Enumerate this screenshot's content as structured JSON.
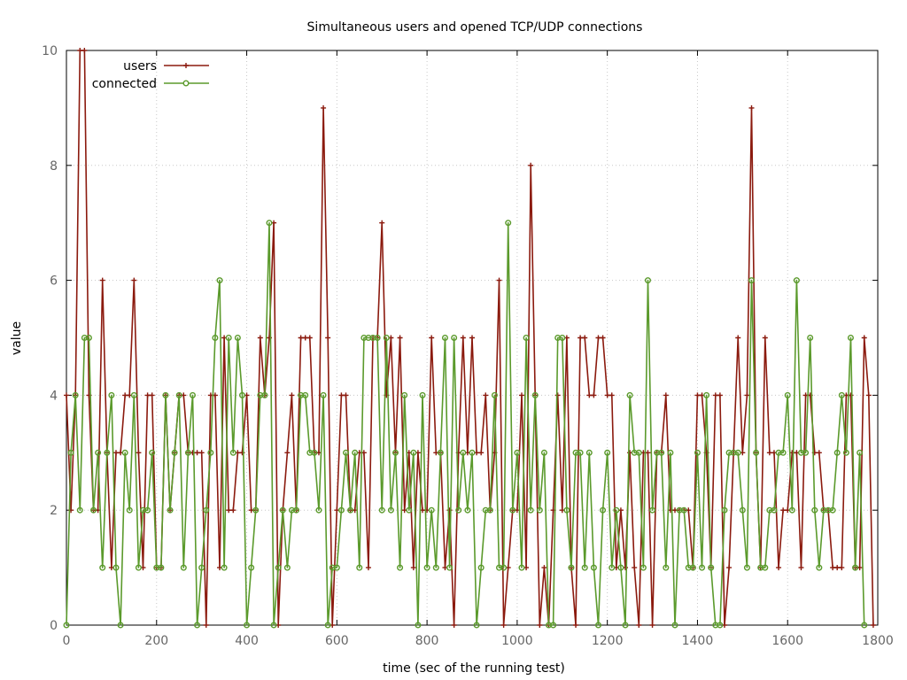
{
  "chart_data": {
    "type": "line",
    "title": "Simultaneous users and opened TCP/UDP connections",
    "xlabel": "time (sec of the running test)",
    "ylabel": "value",
    "xlim": [
      0,
      1800
    ],
    "ylim": [
      0,
      10
    ],
    "xticks": [
      0,
      200,
      400,
      600,
      800,
      1000,
      1200,
      1400,
      1600,
      1800
    ],
    "yticks": [
      0,
      2,
      4,
      6,
      8,
      10
    ],
    "grid": true,
    "legend_position": "top-left",
    "x_step": 10,
    "series": [
      {
        "name": "users",
        "color": "#8b1a0e",
        "marker": "plus",
        "values": [
          4,
          2,
          4,
          10,
          10,
          4,
          2,
          2,
          6,
          3,
          1,
          3,
          3,
          4,
          4,
          6,
          3,
          1,
          4,
          4,
          1,
          1,
          4,
          2,
          3,
          4,
          4,
          3,
          3,
          3,
          3,
          0,
          4,
          4,
          1,
          5,
          2,
          2,
          3,
          3,
          4,
          2,
          2,
          5,
          4,
          5,
          7,
          0,
          2,
          3,
          4,
          2,
          5,
          5,
          5,
          3,
          3,
          9,
          5,
          0,
          2,
          4,
          4,
          2,
          2,
          3,
          3,
          1,
          5,
          5,
          7,
          4,
          5,
          3,
          5,
          2,
          3,
          1,
          3,
          2,
          2,
          5,
          3,
          3,
          1,
          2,
          0,
          3,
          5,
          3,
          5,
          3,
          3,
          4,
          2,
          3,
          6,
          0,
          1,
          2,
          2,
          4,
          1,
          8,
          4,
          0,
          1,
          0,
          2,
          4,
          2,
          5,
          1,
          0,
          5,
          5,
          4,
          4,
          5,
          5,
          4,
          4,
          1,
          2,
          1,
          3,
          1,
          0,
          3,
          3,
          0,
          3,
          3,
          4,
          2,
          2,
          2,
          2,
          2,
          1,
          4,
          4,
          3,
          1,
          4,
          4,
          0,
          1,
          3,
          5,
          3,
          4,
          9,
          3,
          1,
          5,
          3,
          3,
          1,
          2,
          2,
          3,
          3,
          1,
          4,
          4,
          3,
          3,
          2,
          2,
          1,
          1,
          1,
          4,
          4,
          1,
          1,
          5,
          4,
          0
        ]
      },
      {
        "name": "connected",
        "color": "#5b9a2c",
        "marker": "circle",
        "values": [
          0,
          3,
          4,
          2,
          5,
          5,
          2,
          3,
          1,
          3,
          4,
          1,
          0,
          3,
          2,
          4,
          1,
          2,
          2,
          3,
          1,
          1,
          4,
          2,
          3,
          4,
          1,
          3,
          4,
          0,
          1,
          2,
          3,
          5,
          6,
          1,
          5,
          3,
          5,
          4,
          0,
          1,
          2,
          4,
          4,
          7,
          0,
          1,
          2,
          1,
          2,
          2,
          4,
          4,
          3,
          3,
          2,
          4,
          0,
          1,
          1,
          2,
          3,
          2,
          3,
          1,
          5,
          5,
          5,
          5,
          2,
          5,
          2,
          3,
          1,
          4,
          2,
          3,
          0,
          4,
          1,
          2,
          1,
          3,
          5,
          1,
          5,
          2,
          3,
          2,
          3,
          0,
          1,
          2,
          2,
          4,
          1,
          1,
          7,
          2,
          3,
          1,
          5,
          2,
          4,
          2,
          3,
          0,
          0,
          5,
          5,
          2,
          1,
          3,
          3,
          1,
          3,
          1,
          0,
          2,
          3,
          1,
          2,
          1,
          0,
          4,
          3,
          3,
          1,
          6,
          2,
          3,
          3,
          1,
          3,
          0,
          2,
          2,
          1,
          1,
          3,
          1,
          4,
          1,
          0,
          0,
          2,
          3,
          3,
          3,
          2,
          1,
          6,
          3,
          1,
          1,
          2,
          2,
          3,
          3,
          4,
          2,
          6,
          3,
          3,
          5,
          2,
          1,
          2,
          2,
          2,
          3,
          4,
          3,
          5,
          1,
          3,
          0
        ]
      }
    ]
  }
}
